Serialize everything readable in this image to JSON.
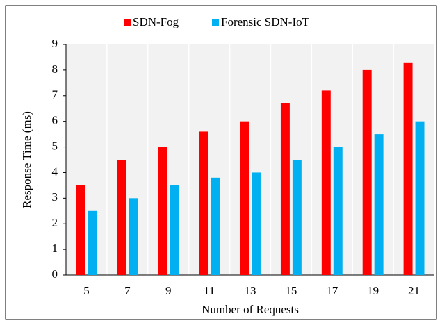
{
  "chart_data": {
    "type": "bar",
    "x_label": "Number of  Requests",
    "y_label": "Response Time (ms)",
    "categories": [
      "5",
      "7",
      "9",
      "11",
      "13",
      "15",
      "17",
      "19",
      "21"
    ],
    "series": [
      {
        "name": "SDN-Fog",
        "color": "#ff0000",
        "values": [
          3.5,
          4.5,
          5,
          5.6,
          6,
          6.7,
          7.2,
          8,
          8.3
        ]
      },
      {
        "name": "Forensic SDN-IoT",
        "color": "#00b0f0",
        "values": [
          2.5,
          3,
          3.5,
          3.8,
          4,
          4.5,
          5,
          5.5,
          6
        ]
      }
    ],
    "ylim": [
      0,
      9
    ],
    "yticks": [
      0,
      1,
      2,
      3,
      4,
      5,
      6,
      7,
      8,
      9
    ],
    "grid": true,
    "legend": "top"
  }
}
